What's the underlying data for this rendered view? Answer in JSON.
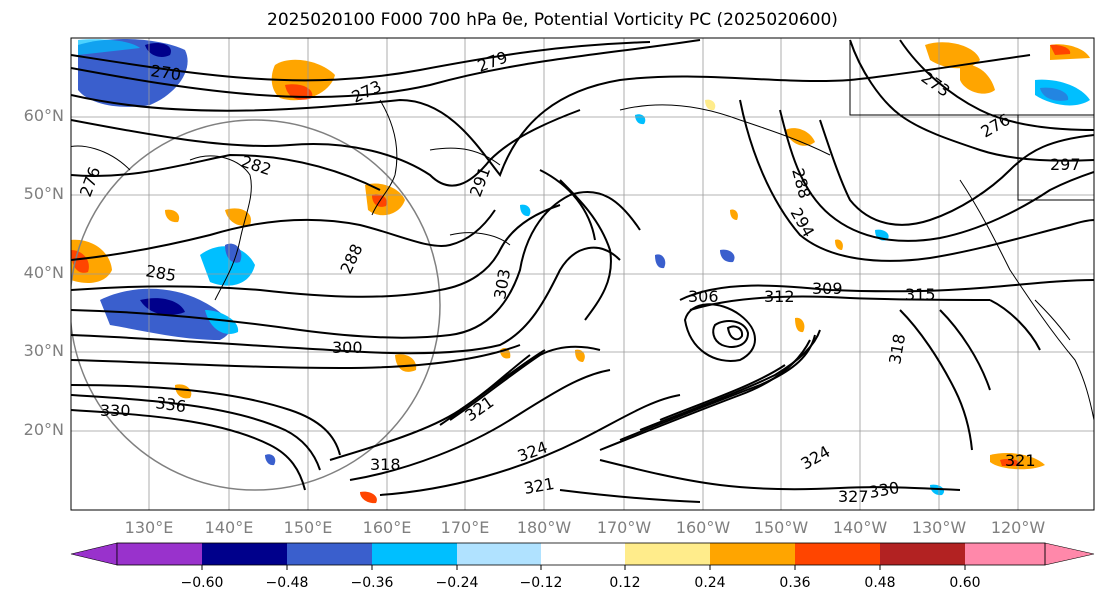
{
  "title": "2025020100 F000 700 hPa θe, Potential Vorticity PC (2025020600)",
  "latitude_labels": [
    "60°N",
    "50°N",
    "40°N",
    "30°N",
    "20°N"
  ],
  "longitude_labels": [
    "130°E",
    "140°E",
    "150°E",
    "160°E",
    "170°E",
    "180°W",
    "170°W",
    "160°W",
    "150°W",
    "140°W",
    "130°W",
    "120°W"
  ],
  "contour_labels": [
    {
      "text": "270"
    },
    {
      "text": "273"
    },
    {
      "text": "279"
    },
    {
      "text": "282"
    },
    {
      "text": "285"
    },
    {
      "text": "288"
    },
    {
      "text": "291"
    },
    {
      "text": "276"
    },
    {
      "text": "300"
    },
    {
      "text": "303"
    },
    {
      "text": "306"
    },
    {
      "text": "312"
    },
    {
      "text": "309"
    },
    {
      "text": "315"
    },
    {
      "text": "318"
    },
    {
      "text": "321"
    },
    {
      "text": "324"
    },
    {
      "text": "327"
    },
    {
      "text": "330"
    },
    {
      "text": "336"
    },
    {
      "text": "294"
    },
    {
      "text": "297"
    },
    {
      "text": "273"
    },
    {
      "text": "276"
    },
    {
      "text": "288"
    },
    {
      "text": "330"
    },
    {
      "text": "321"
    },
    {
      "text": "318"
    },
    {
      "text": "324"
    },
    {
      "text": "321"
    }
  ],
  "colorbar": {
    "ticks": [
      "−0.60",
      "−0.48",
      "−0.36",
      "−0.24",
      "−0.12",
      "0.12",
      "0.24",
      "0.36",
      "0.48",
      "0.60"
    ],
    "colors": [
      "#9932cc",
      "#00008b",
      "#3a5fcd",
      "#00bfff",
      "#b0e2ff",
      "#ffffff",
      "#ffec8b",
      "#ffa500",
      "#ff4500",
      "#b22222",
      "#ff88aa"
    ]
  }
}
